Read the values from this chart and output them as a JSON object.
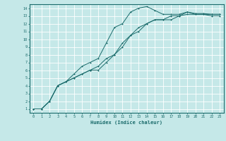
{
  "xlabel": "Humidex (Indice chaleur)",
  "bg_color": "#c5e8e8",
  "grid_color": "#ffffff",
  "line_color": "#1a6b6b",
  "xlim": [
    -0.5,
    23.5
  ],
  "ylim": [
    0.5,
    14.5
  ],
  "xticks": [
    0,
    1,
    2,
    3,
    4,
    5,
    6,
    7,
    8,
    9,
    10,
    11,
    12,
    13,
    14,
    15,
    16,
    17,
    18,
    19,
    20,
    21,
    22,
    23
  ],
  "yticks": [
    1,
    2,
    3,
    4,
    5,
    6,
    7,
    8,
    9,
    10,
    11,
    12,
    13,
    14
  ],
  "curve1_x": [
    0,
    1,
    2,
    3,
    4,
    5,
    6,
    7,
    8,
    9,
    10,
    11,
    12,
    13,
    14,
    15,
    16,
    17,
    18,
    19,
    20,
    21,
    22,
    23
  ],
  "curve1_y": [
    1.0,
    1.0,
    2.0,
    4.0,
    4.5,
    5.5,
    6.5,
    7.0,
    7.5,
    9.5,
    11.5,
    12.0,
    13.5,
    14.0,
    14.2,
    13.7,
    13.2,
    13.2,
    13.2,
    13.5,
    13.3,
    13.3,
    13.2,
    13.2
  ],
  "curve2_x": [
    0,
    1,
    2,
    3,
    4,
    5,
    6,
    7,
    8,
    9,
    10,
    11,
    12,
    13,
    14,
    15,
    16,
    17,
    18,
    19,
    20,
    21,
    22,
    23
  ],
  "curve2_y": [
    1.0,
    1.0,
    2.0,
    4.0,
    4.5,
    5.0,
    5.5,
    6.0,
    6.5,
    7.5,
    8.0,
    9.0,
    10.5,
    11.5,
    12.0,
    12.5,
    12.5,
    12.5,
    13.0,
    13.5,
    13.2,
    13.2,
    13.2,
    13.2
  ],
  "curve3_x": [
    0,
    1,
    2,
    3,
    4,
    5,
    6,
    7,
    8,
    9,
    10,
    11,
    12,
    13,
    14,
    15,
    16,
    17,
    18,
    19,
    20,
    21,
    22,
    23
  ],
  "curve3_y": [
    1.0,
    1.0,
    2.0,
    4.0,
    4.5,
    5.0,
    5.5,
    6.0,
    6.0,
    7.0,
    8.0,
    9.5,
    10.5,
    11.0,
    12.0,
    12.5,
    12.5,
    13.0,
    13.0,
    13.2,
    13.2,
    13.2,
    13.0,
    13.0
  ]
}
